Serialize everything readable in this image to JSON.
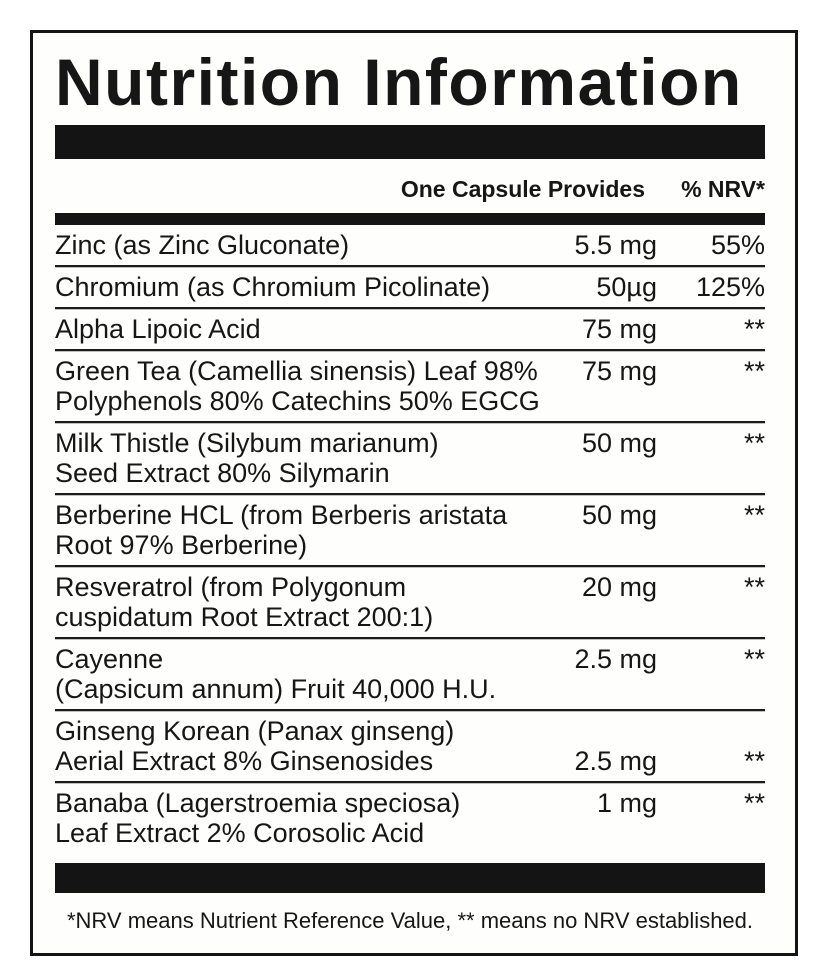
{
  "title": "Nutrition Information",
  "header": {
    "provides_label": "One Capsule Provides",
    "nrv_label": "% NRV*"
  },
  "rows": [
    {
      "name_lines": [
        "Zinc (as Zinc Gluconate)"
      ],
      "amount": "5.5 mg",
      "nrv": "55%"
    },
    {
      "name_lines": [
        "Chromium (as Chromium Picolinate)"
      ],
      "amount": "50µg",
      "nrv": "125%"
    },
    {
      "name_lines": [
        "Alpha Lipoic Acid"
      ],
      "amount": "75 mg",
      "nrv": "**"
    },
    {
      "name_lines": [
        "Green Tea (Camellia sinensis) Leaf 98%",
        "Polyphenols 80% Catechins 50% EGCG"
      ],
      "amount": "75 mg",
      "nrv": "**"
    },
    {
      "name_lines": [
        "Milk Thistle (Silybum marianum)",
        "Seed Extract 80% Silymarin"
      ],
      "amount": "50 mg",
      "nrv": "**"
    },
    {
      "name_lines": [
        "Berberine HCL (from Berberis aristata",
        "Root 97% Berberine)"
      ],
      "amount": "50 mg",
      "nrv": "**"
    },
    {
      "name_lines": [
        "Resveratrol (from Polygonum",
        "cuspidatum Root Extract 200:1)"
      ],
      "amount": "20 mg",
      "nrv": "**"
    },
    {
      "name_lines": [
        "Cayenne",
        "(Capsicum annum) Fruit 40,000 H.U."
      ],
      "amount": "2.5 mg",
      "nrv": "**"
    },
    {
      "name_lines": [
        "Ginseng Korean (Panax ginseng)",
        "Aerial Extract 8% Ginsenosides"
      ],
      "amount": "2.5 mg",
      "nrv": "**",
      "value_align": "bottom"
    },
    {
      "name_lines": [
        "Banaba (Lagerstroemia speciosa)",
        "Leaf Extract 2% Corosolic Acid"
      ],
      "amount": "1 mg",
      "nrv": "**"
    }
  ],
  "footnote": "*NRV means Nutrient Reference Value, ** means no NRV established.",
  "colors": {
    "ink": "#161616",
    "bar": "#141414",
    "card_background": "#fefefc",
    "page_background": "#ffffff"
  }
}
